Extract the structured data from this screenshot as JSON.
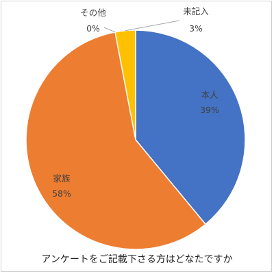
{
  "chart_data": {
    "type": "pie",
    "title": "アンケートをご記載下さる方はどなたですか",
    "slices": [
      {
        "label": "本人",
        "value": 39,
        "display": "39%",
        "color": "#4472C4",
        "label_color": "#404040"
      },
      {
        "label": "家族",
        "value": 58,
        "display": "58%",
        "color": "#ED7D31",
        "label_color": "#404040"
      },
      {
        "label": "その他",
        "value": 0,
        "display": "0%",
        "color": "#A5A5A5",
        "label_color": "#404040"
      },
      {
        "label": "未記入",
        "value": 3,
        "display": "3%",
        "color": "#FFC000",
        "label_color": "#404040"
      }
    ],
    "start_angle_deg": 0,
    "direction": "clockwise"
  }
}
